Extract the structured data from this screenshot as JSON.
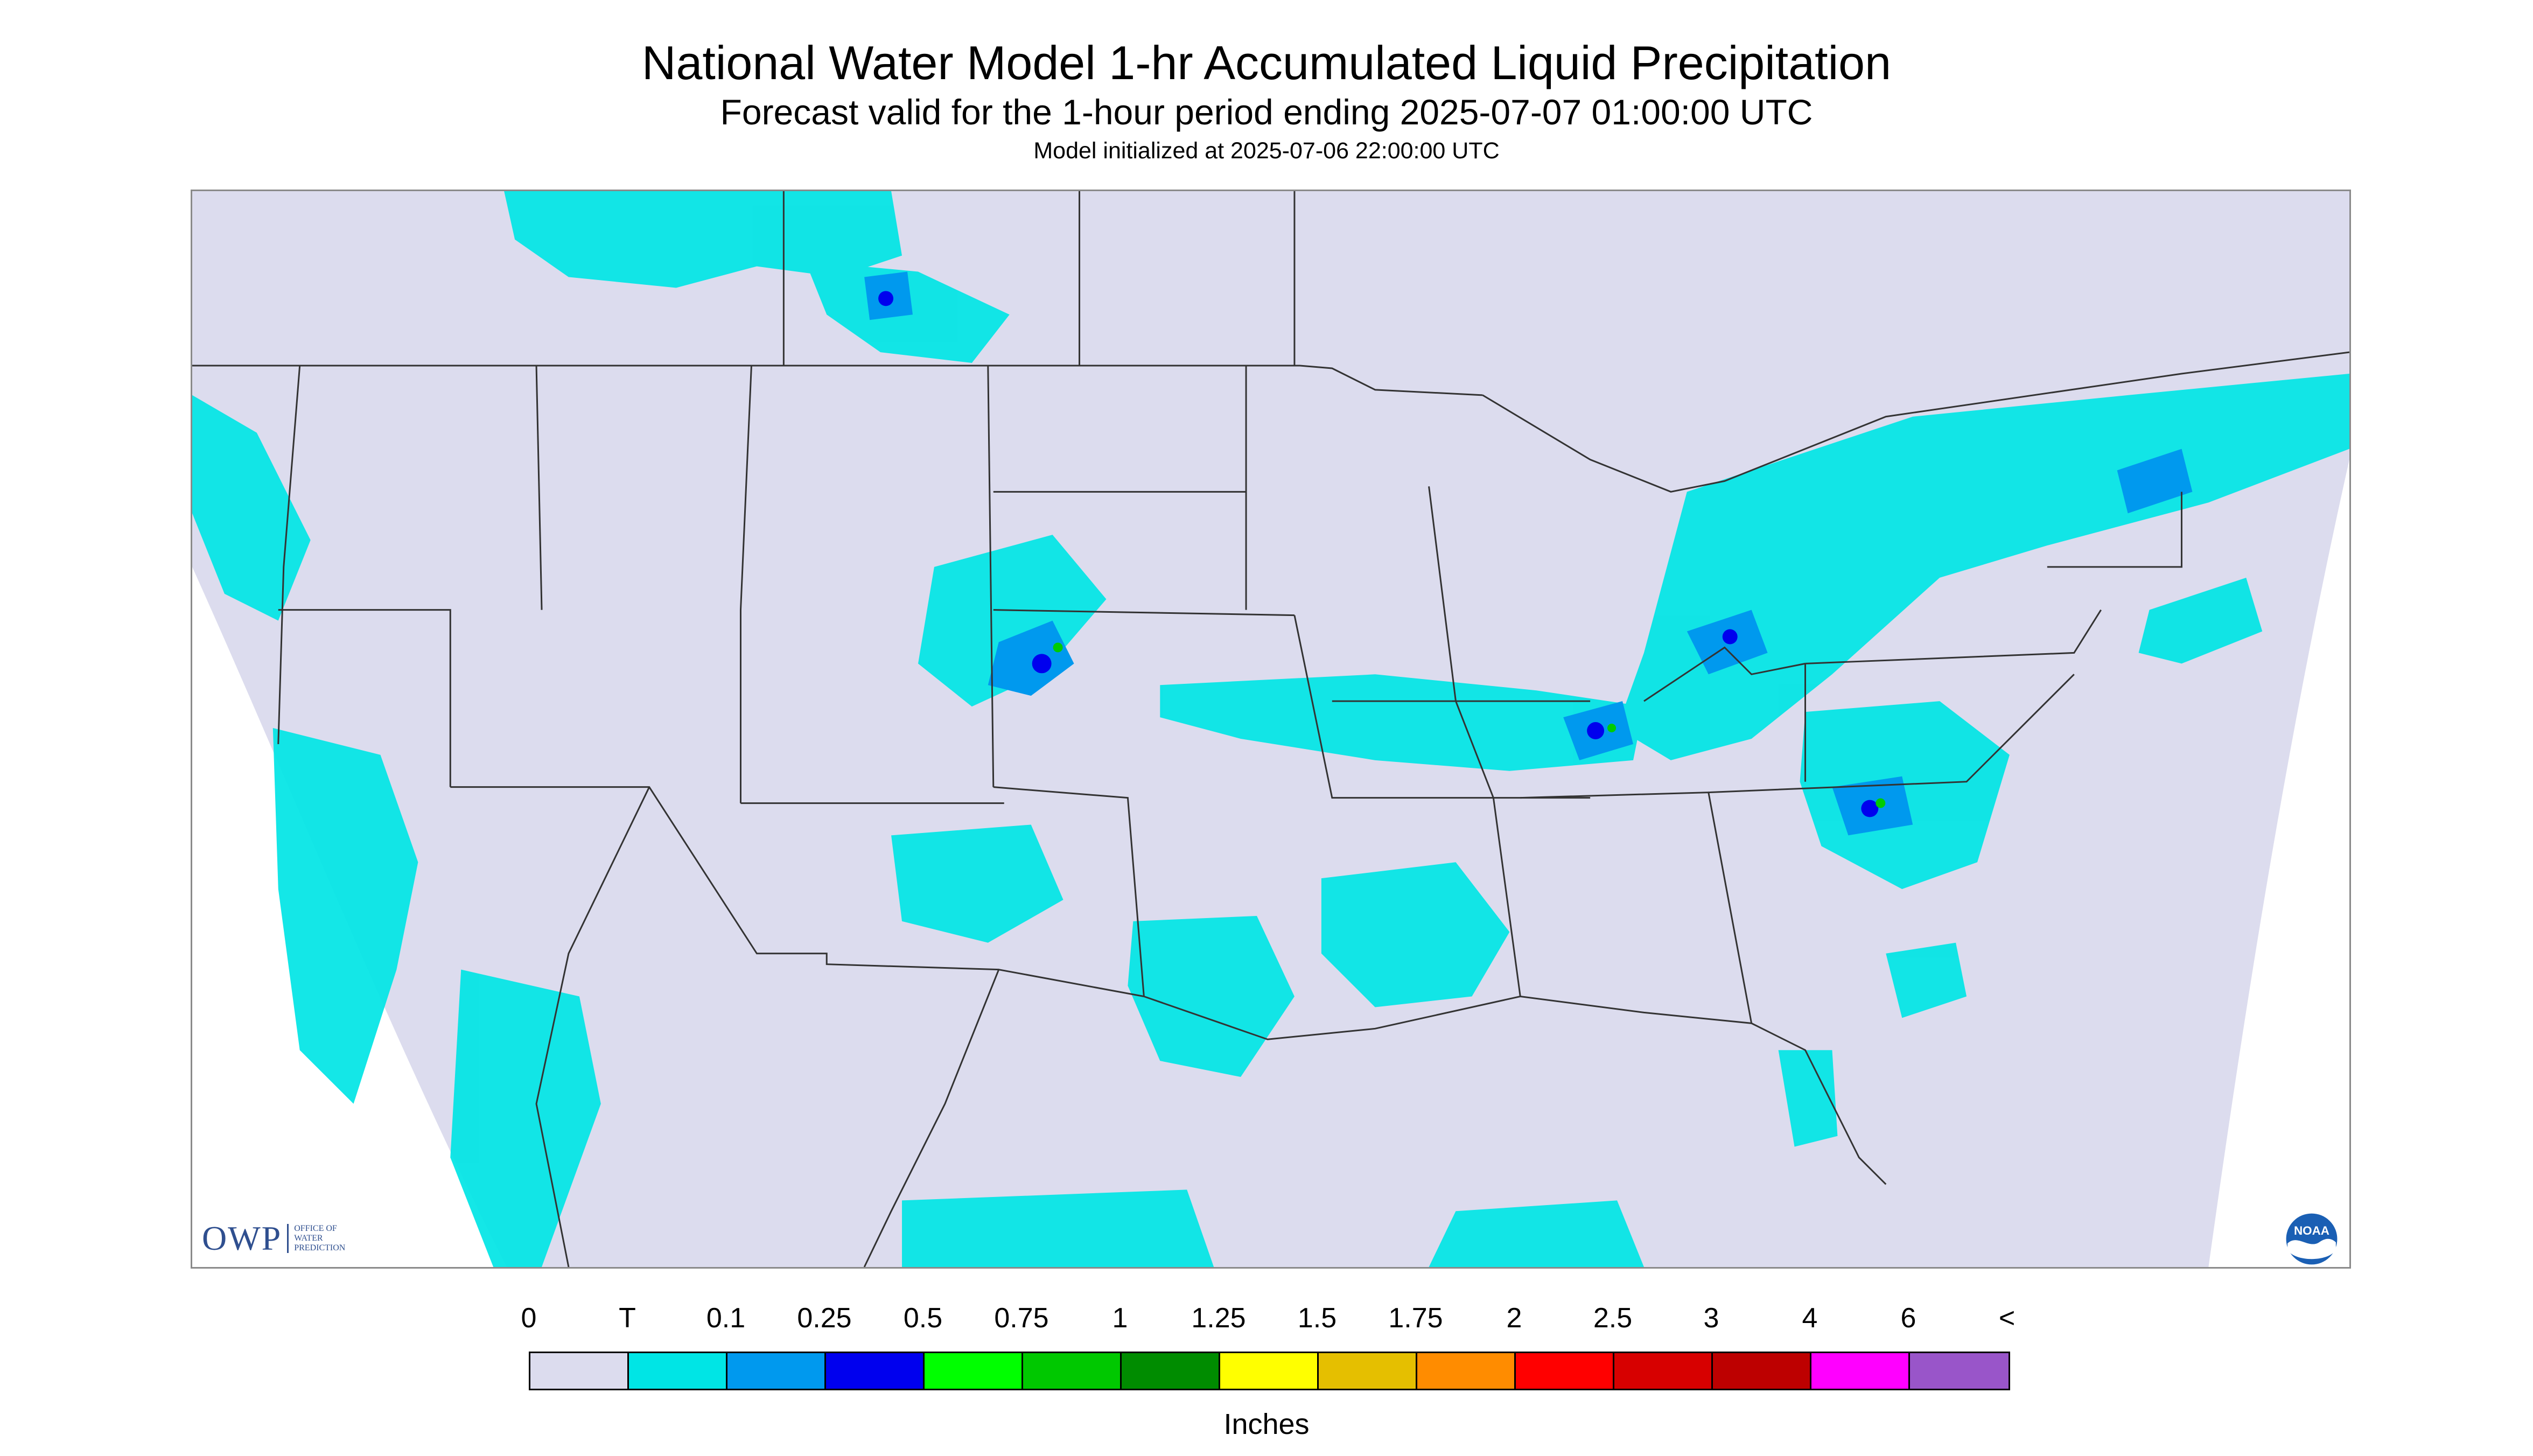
{
  "header": {
    "title": "National Water Model 1-hr Accumulated Liquid Precipitation",
    "subtitle": "Forecast valid for the 1-hour period ending 2025-07-07 01:00:00 UTC",
    "init_line": "Model initialized at 2025-07-06 22:00:00 UTC"
  },
  "map": {
    "background_color": "#dcdcee",
    "outside_color": "#ffffff",
    "boundary_color": "#333333",
    "precip_colors": {
      "trace": "#00e5e5",
      "light": "#0099ee",
      "moderate": "#0000ee",
      "heavy": "#00cc00"
    }
  },
  "logos": {
    "owp_mark": "OWP",
    "owp_text": "OFFICE OF WATER PREDICTION",
    "noaa_text": "NOAA"
  },
  "legend": {
    "units": "Inches",
    "labels": [
      "0",
      "T",
      "0.1",
      "0.25",
      "0.5",
      "0.75",
      "1",
      "1.25",
      "1.5",
      "1.75",
      "2",
      "2.5",
      "3",
      "4",
      "6",
      "<"
    ],
    "colors": [
      "#dcdcee",
      "#00e5e5",
      "#0099ee",
      "#0000ee",
      "#00ff00",
      "#00c800",
      "#008c00",
      "#ffff00",
      "#e5bf00",
      "#ff8c00",
      "#ff0000",
      "#d70000",
      "#bd0000",
      "#ff00ff",
      "#9955c9"
    ]
  }
}
